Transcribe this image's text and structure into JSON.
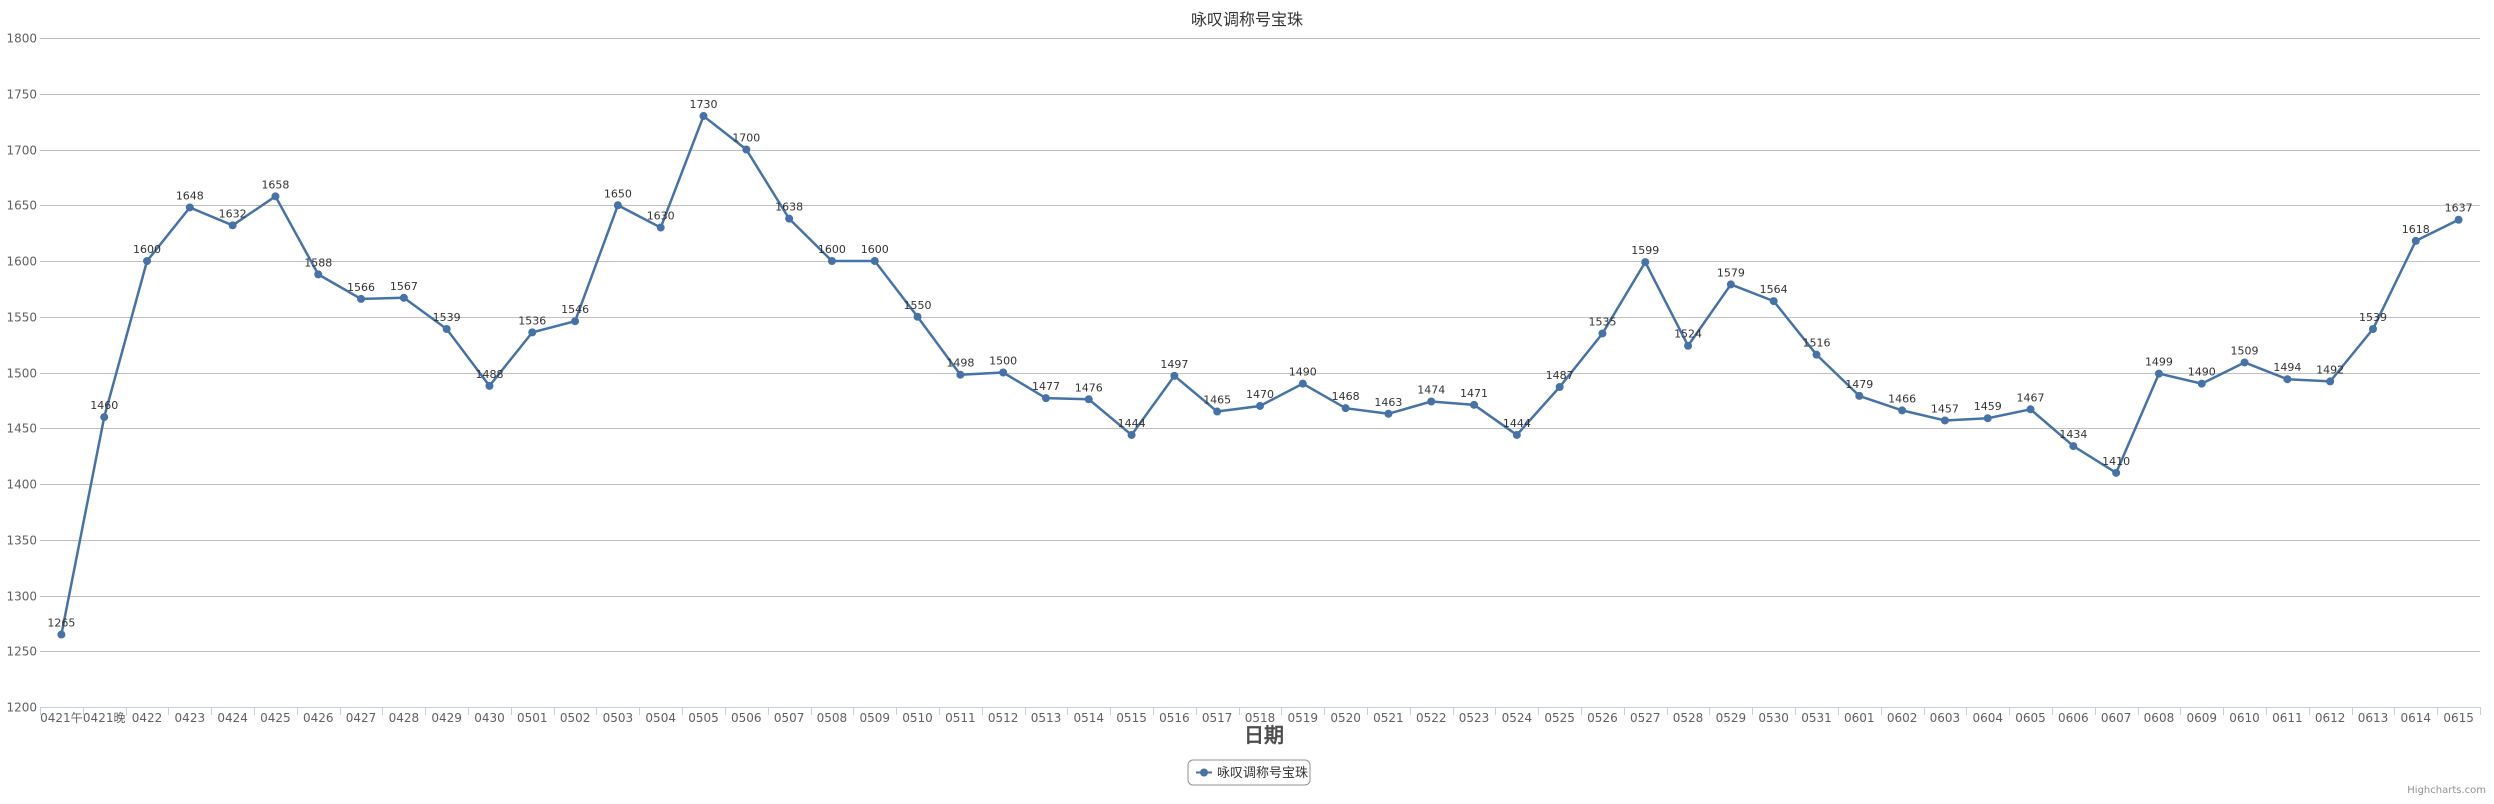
{
  "chart_data": {
    "type": "line",
    "title": "咏叹调称号宝珠",
    "xlabel": "日期",
    "ylabel": "",
    "ylim": [
      1200,
      1800
    ],
    "yticks": [
      1200,
      1250,
      1300,
      1350,
      1400,
      1450,
      1500,
      1550,
      1600,
      1650,
      1700,
      1750,
      1800
    ],
    "grid": true,
    "legend_position": "bottom-center",
    "credits": "Highcharts.com",
    "categories": [
      "0421午",
      "0421晚",
      "0422",
      "0423",
      "0424",
      "0425",
      "0426",
      "0427",
      "0428",
      "0429",
      "0430",
      "0501",
      "0502",
      "0503",
      "0504",
      "0505",
      "0506",
      "0507",
      "0508",
      "0509",
      "0510",
      "0511",
      "0512",
      "0513",
      "0514",
      "0515",
      "0516",
      "0517",
      "0518",
      "0519",
      "0520",
      "0521",
      "0522",
      "0523",
      "0524",
      "0525",
      "0526",
      "0527",
      "0528",
      "0529",
      "0530",
      "0531",
      "0601",
      "0602",
      "0603",
      "0604",
      "0605",
      "0606",
      "0607",
      "0608",
      "0609",
      "0610",
      "0611",
      "0612",
      "0613",
      "0614",
      "0615"
    ],
    "series": [
      {
        "name": "咏叹调称号宝珠",
        "color": "#4572A7",
        "values": [
          1265,
          1460,
          1600,
          1648,
          1632,
          1658,
          1588,
          1566,
          1567,
          1539,
          1488,
          1536,
          1546,
          1650,
          1630,
          1730,
          1700,
          1638,
          1600,
          1600,
          1550,
          1498,
          1500,
          1477,
          1476,
          1444,
          1497,
          1465,
          1470,
          1490,
          1468,
          1463,
          1474,
          1471,
          1444,
          1487,
          1535,
          1599,
          1524,
          1579,
          1564,
          1516,
          1479,
          1466,
          1457,
          1459,
          1467,
          1434,
          1410,
          1499,
          1490,
          1509,
          1494,
          1492,
          1539,
          1618,
          1637
        ]
      }
    ]
  }
}
